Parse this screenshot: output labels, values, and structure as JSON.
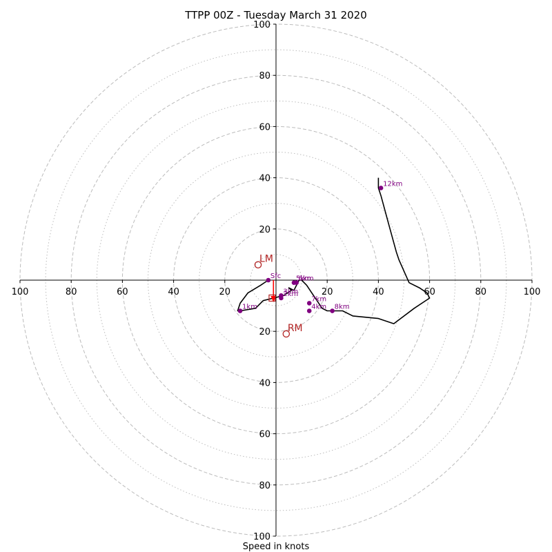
{
  "chart_data": {
    "type": "line",
    "title": "TTPP 00Z - Tuesday March 31 2020",
    "xlabel": "Speed in knots",
    "ylabel": "",
    "xlim": [
      -100,
      100
    ],
    "ylim": [
      -100,
      100
    ],
    "rings_major": [
      20,
      40,
      60,
      80,
      100
    ],
    "rings_minor": [
      10,
      30,
      50,
      70,
      90
    ],
    "x_tick_labels": [
      "100",
      "80",
      "60",
      "40",
      "20",
      "20",
      "40",
      "60",
      "80",
      "100"
    ],
    "x_tick_values": [
      -100,
      -80,
      -60,
      -40,
      -20,
      20,
      40,
      60,
      80,
      100
    ],
    "y_tick_labels": [
      "100",
      "80",
      "60",
      "40",
      "20",
      "20",
      "40",
      "60",
      "80",
      "100"
    ],
    "y_tick_values": [
      100,
      80,
      60,
      40,
      20,
      -20,
      -40,
      -60,
      -80,
      -100
    ],
    "grid": true,
    "series": [
      {
        "color": "#000000",
        "x": [
          -3,
          -6,
          -11,
          -14,
          -15,
          -14,
          -8,
          -5,
          -1,
          3,
          6,
          6,
          5,
          7,
          8,
          9,
          9,
          10,
          11,
          12,
          14,
          16,
          18,
          20,
          22,
          26,
          30,
          40,
          46,
          54,
          60,
          59,
          56,
          52,
          48,
          47,
          44,
          41,
          40,
          40,
          40
        ],
        "y": [
          0,
          -2,
          -5,
          -9,
          -12,
          -12,
          -11,
          -8,
          -7,
          -6,
          -4,
          -4,
          -3,
          -4,
          -2,
          0,
          0,
          0,
          -1,
          -2,
          -5,
          -8,
          -11,
          -12,
          -12,
          -12,
          -14,
          -15,
          -17,
          -11,
          -7,
          -5,
          -3,
          -1,
          8,
          11,
          22,
          33,
          36,
          38,
          40
        ]
      }
    ],
    "height_markers": [
      {
        "label": "Sfc",
        "x": -3,
        "y": 0
      },
      {
        "label": "1km",
        "x": -14,
        "y": -12
      },
      {
        "label": "2km",
        "x": 2,
        "y": -7
      },
      {
        "label": "3km",
        "x": 2,
        "y": -6
      },
      {
        "label": "4km",
        "x": 13,
        "y": -12
      },
      {
        "label": "5km",
        "x": 7,
        "y": -1
      },
      {
        "label": "6km",
        "x": 8,
        "y": -1
      },
      {
        "label": "7km",
        "x": 13,
        "y": -9
      },
      {
        "label": "8km",
        "x": 22,
        "y": -12
      },
      {
        "label": "12km",
        "x": 41,
        "y": 36
      }
    ],
    "storm_motion": {
      "LM": {
        "label": "LM",
        "x": -7,
        "y": 6,
        "color": "#b22222"
      },
      "RM": {
        "label": "RM",
        "x": 4,
        "y": -21,
        "color": "#b22222"
      },
      "mean": {
        "x": -1.5,
        "y": -7,
        "color": "#b22222"
      }
    },
    "shear_vector": {
      "from": [
        -1,
        0
      ],
      "to": [
        -1,
        -7
      ],
      "color": "#ff0000"
    },
    "colors": {
      "ring": "#bbbbbb",
      "axis": "#000000",
      "marker": "#800080",
      "motion": "#b22222",
      "shear": "#ff0000"
    }
  }
}
